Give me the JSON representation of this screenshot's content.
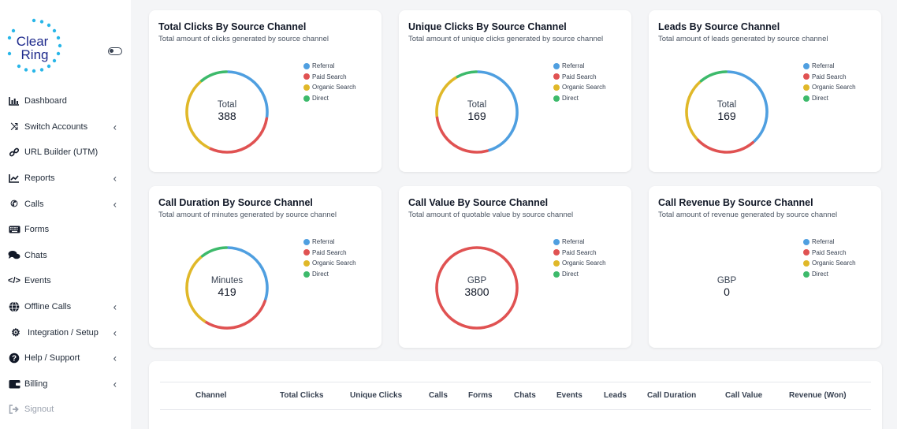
{
  "brand": {
    "logo_line1": "Clear",
    "logo_line2": "Ring"
  },
  "sidebar": {
    "items": [
      {
        "label": "Dashboard",
        "icon": "bar-chart-icon",
        "chevron": false
      },
      {
        "label": "Switch Accounts",
        "icon": "shuffle-icon",
        "chevron": true
      },
      {
        "label": "URL Builder (UTM)",
        "icon": "link-icon",
        "chevron": false
      },
      {
        "label": "Reports",
        "icon": "line-chart-icon",
        "chevron": true
      },
      {
        "label": "Calls",
        "icon": "phone-icon",
        "chevron": true
      },
      {
        "label": "Forms",
        "icon": "keyboard-icon",
        "chevron": false
      },
      {
        "label": "Chats",
        "icon": "chat-icon",
        "chevron": false
      },
      {
        "label": "Events",
        "icon": "code-icon",
        "chevron": false
      },
      {
        "label": "Offline Calls",
        "icon": "globe-icon",
        "chevron": true
      },
      {
        "label": "Integration / Setup",
        "icon": "cogs-icon",
        "chevron": true
      },
      {
        "label": "Help / Support",
        "icon": "question-icon",
        "chevron": true
      },
      {
        "label": "Billing",
        "icon": "wallet-icon",
        "chevron": true
      },
      {
        "label": "Signout",
        "icon": "signout-icon",
        "chevron": false
      }
    ]
  },
  "legend": [
    "Referral",
    "Paid Search",
    "Organic Search",
    "Direct"
  ],
  "colors": {
    "Referral": "#4f9fe0",
    "Paid Search": "#e05252",
    "Organic Search": "#e0b829",
    "Direct": "#3dba6b"
  },
  "cards": [
    {
      "title": "Total Clicks By Source Channel",
      "subtitle": "Total amount of clicks generated by source channel",
      "center_label": "Total",
      "center_value": "388"
    },
    {
      "title": "Unique Clicks By Source Channel",
      "subtitle": "Total amount of unique clicks generated by source channel",
      "center_label": "Total",
      "center_value": "169"
    },
    {
      "title": "Leads By Source Channel",
      "subtitle": "Total amount of leads generated by source channel",
      "center_label": "Total",
      "center_value": "169"
    },
    {
      "title": "Call Duration By Source Channel",
      "subtitle": "Total amount of minutes generated by source channel",
      "center_label": "Minutes",
      "center_value": "419"
    },
    {
      "title": "Call Value By Source Channel",
      "subtitle": "Total amount of quotable value by source channel",
      "center_label": "GBP",
      "center_value": "3800"
    },
    {
      "title": "Call Revenue By Source Channel",
      "subtitle": "Total amount of revenue generated by source channel",
      "center_label": "GBP",
      "center_value": "0"
    }
  ],
  "chart_data": [
    {
      "type": "pie",
      "title": "Total Clicks By Source Channel",
      "categories": [
        "Referral",
        "Paid Search",
        "Organic Search",
        "Direct"
      ],
      "values": [
        106,
        116,
        123,
        43
      ]
    },
    {
      "type": "pie",
      "title": "Unique Clicks By Source Channel",
      "categories": [
        "Referral",
        "Paid Search",
        "Organic Search",
        "Direct"
      ],
      "values": [
        77,
        47,
        31,
        14
      ]
    },
    {
      "type": "pie",
      "title": "Leads By Source Channel",
      "categories": [
        "Referral",
        "Paid Search",
        "Organic Search",
        "Direct"
      ],
      "values": [
        65,
        42,
        43,
        19
      ]
    },
    {
      "type": "pie",
      "title": "Call Duration By Source Channel",
      "categories": [
        "Referral",
        "Paid Search",
        "Organic Search",
        "Direct"
      ],
      "values": [
        126,
        122,
        126,
        45
      ]
    },
    {
      "type": "pie",
      "title": "Call Value By Source Channel",
      "categories": [
        "Referral",
        "Paid Search",
        "Organic Search",
        "Direct"
      ],
      "values": [
        0,
        3800,
        0,
        0
      ]
    },
    {
      "type": "pie",
      "title": "Call Revenue By Source Channel",
      "categories": [
        "Referral",
        "Paid Search",
        "Organic Search",
        "Direct"
      ],
      "values": [
        0,
        0,
        0,
        0
      ]
    }
  ],
  "table": {
    "headers": [
      "Channel",
      "Total Clicks",
      "Unique Clicks",
      "Calls",
      "Forms",
      "Chats",
      "Events",
      "Leads",
      "Call Duration",
      "Call Value",
      "Revenue (Won)"
    ]
  }
}
